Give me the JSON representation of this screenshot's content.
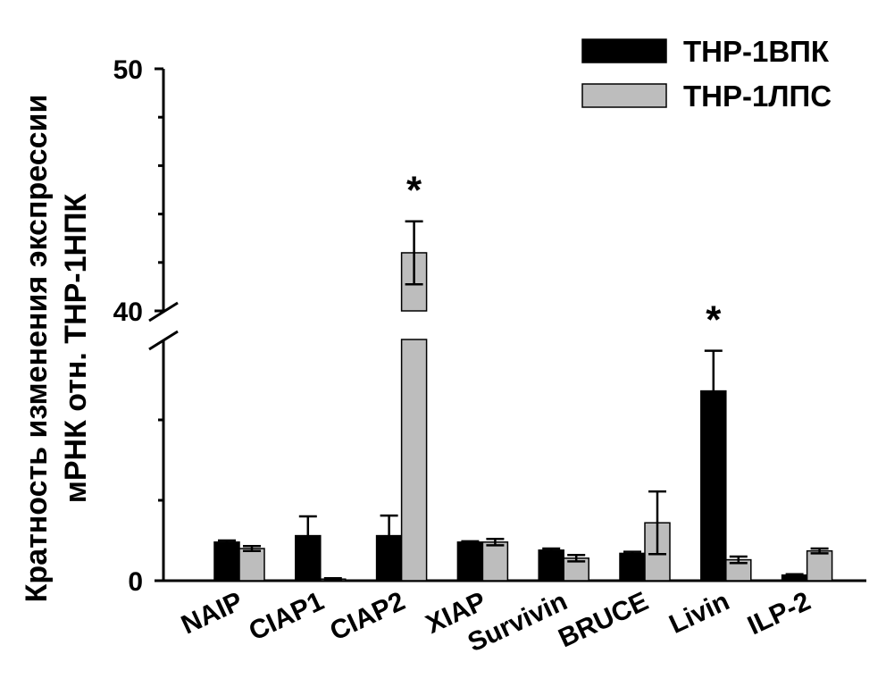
{
  "chart_data": {
    "type": "bar",
    "ylabel_line1": "Кратность изменения экспрессии",
    "ylabel_line2": "мРНК отн. THP-1НПК",
    "categories": [
      "NAIP",
      "CIAP1",
      "CIAP2",
      "XIAP",
      "Survivin",
      "BRUCE",
      "Livin",
      "ILP-2"
    ],
    "series": [
      {
        "name": "THP-1ВПК",
        "color": "#000000",
        "values": [
          0.48,
          0.56,
          0.56,
          0.48,
          0.38,
          0.34,
          2.36,
          0.07
        ],
        "errors": [
          0.02,
          0.24,
          0.25,
          0.01,
          0.02,
          0.02,
          0.5,
          0.01
        ]
      },
      {
        "name": "THP-1ЛПС",
        "color": "#bdbdbd",
        "values": [
          0.4,
          0.02,
          42.4,
          0.48,
          0.28,
          0.72,
          0.26,
          0.37
        ],
        "errors": [
          0.03,
          0.01,
          1.3,
          0.04,
          0.04,
          0.39,
          0.04,
          0.03
        ]
      }
    ],
    "yticks": [
      {
        "value": 0,
        "label": "0"
      },
      {
        "value": 40,
        "label": "40"
      },
      {
        "value": 50,
        "label": "50"
      }
    ],
    "axis_break": {
      "lower_range": [
        0,
        3
      ],
      "upper_range": [
        40,
        50
      ]
    },
    "significance": [
      {
        "category": "CIAP2",
        "label": "*"
      },
      {
        "category": "Livin",
        "label": "*"
      }
    ]
  }
}
